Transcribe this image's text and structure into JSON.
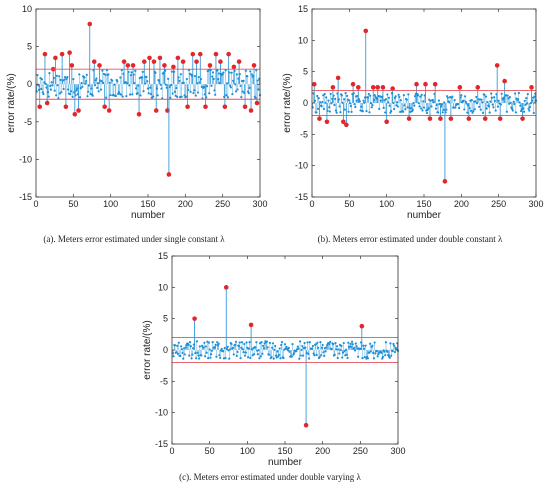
{
  "colors": {
    "points": "#1f8fd6",
    "outliers": "#e3262b",
    "bounds": "#e8505a",
    "axis": "#333333"
  },
  "chart_data": [
    {
      "type": "scatter",
      "caption": "(a).  Meters error estimated under single constant λ",
      "xlabel": "number",
      "ylabel": "error rate/(%)",
      "xlim": [
        0,
        300
      ],
      "ylim": [
        -15,
        10
      ],
      "xticks": [
        0,
        50,
        100,
        150,
        200,
        250,
        300
      ],
      "yticks": [
        10,
        5,
        0,
        -5,
        -10,
        -15
      ],
      "bounds": [
        2,
        -2
      ],
      "series": [
        {
          "role": "outliers",
          "x": [
            5,
            12,
            15,
            23,
            26,
            35,
            40,
            45,
            48,
            52,
            57,
            72,
            78,
            85,
            92,
            98,
            118,
            123,
            130,
            138,
            145,
            152,
            158,
            161,
            166,
            172,
            176,
            178,
            184,
            190,
            197,
            203,
            210,
            215,
            220,
            227,
            233,
            241,
            247,
            253,
            258,
            265,
            272,
            280,
            288,
            292,
            296
          ],
          "y": [
            -3,
            4,
            -2.5,
            2,
            3.5,
            4,
            -3,
            4.2,
            2.5,
            -4,
            -3.5,
            8,
            3,
            2.5,
            -3,
            -3.5,
            3,
            2.5,
            2.5,
            -4,
            3,
            3.5,
            3,
            -3.5,
            3.5,
            2.5,
            -3.5,
            -12,
            2.3,
            3.5,
            3,
            -3,
            4,
            3,
            4,
            -3,
            2.5,
            4,
            3,
            -3,
            4,
            2.3,
            3,
            -3,
            -3.5,
            2.5,
            -2.5
          ]
        }
      ]
    },
    {
      "type": "scatter",
      "caption": "(b).  Meters error estimated under double constant λ",
      "xlabel": "number",
      "ylabel": "error rate/(%)",
      "xlim": [
        0,
        300
      ],
      "ylim": [
        -15,
        15
      ],
      "xticks": [
        0,
        50,
        100,
        150,
        200,
        250,
        300
      ],
      "yticks": [
        15,
        10,
        5,
        0,
        -5,
        -10,
        -15
      ],
      "bounds": [
        2,
        -2
      ],
      "series": [
        {
          "role": "outliers",
          "x": [
            3,
            10,
            20,
            28,
            35,
            42,
            46,
            55,
            62,
            72,
            82,
            88,
            95,
            100,
            108,
            130,
            140,
            152,
            158,
            165,
            172,
            178,
            186,
            198,
            210,
            222,
            232,
            248,
            252,
            258,
            282,
            294
          ],
          "y": [
            3,
            -2.5,
            -3,
            2.5,
            4,
            -3,
            -3.5,
            3,
            2.5,
            11.5,
            2.5,
            2.5,
            2.5,
            -3,
            2.3,
            -2.5,
            3,
            3,
            -2.5,
            3,
            -2.5,
            -12.5,
            -2.5,
            2.5,
            -2.5,
            2.5,
            -2.5,
            6,
            -2.5,
            3.5,
            -2.5,
            2.5
          ]
        }
      ]
    },
    {
      "type": "scatter",
      "caption": "(c).  Meters error estimated under double varying λ",
      "xlabel": "number",
      "ylabel": "error rate/(%)",
      "xlim": [
        0,
        300
      ],
      "ylim": [
        -15,
        15
      ],
      "xticks": [
        0,
        50,
        100,
        150,
        200,
        250,
        300
      ],
      "yticks": [
        15,
        10,
        5,
        0,
        -5,
        -10,
        -15
      ],
      "bounds": [
        2,
        -2
      ],
      "series": [
        {
          "role": "outliers",
          "x": [
            30,
            72,
            105,
            178,
            252
          ],
          "y": [
            5,
            10,
            4,
            -12,
            3.8
          ]
        }
      ]
    }
  ]
}
